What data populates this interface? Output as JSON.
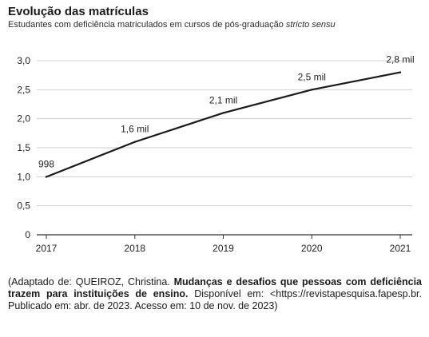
{
  "title": "Evolução das matrículas",
  "subtitle_main": "Estudantes com deficiência matriculados em cursos de pós-graduação",
  "subtitle_italic": "stricto sensu",
  "chart_data": {
    "type": "line",
    "x": [
      "2017",
      "2018",
      "2019",
      "2020",
      "2021"
    ],
    "series": [
      {
        "values": [
          998,
          1600,
          2100,
          2500,
          2800
        ]
      }
    ],
    "data_labels": [
      "998",
      "1,6 mil",
      "2,1 mil",
      "2,5 mil",
      "2,8 mil"
    ],
    "y_ticks": [
      0,
      0.5,
      1.0,
      1.5,
      2.0,
      2.5,
      3.0
    ],
    "y_tick_labels": [
      "0",
      "0,5",
      "1,0",
      "1,5",
      "2,0",
      "2,5",
      "3,0"
    ],
    "ylim": [
      0,
      3.0
    ],
    "y_unit": "thousands",
    "grid": "horizontal",
    "line_color": "#1a1a1a",
    "grid_color": "#cfcfcf"
  },
  "source": {
    "part1": "(Adaptado de: QUEIROZ, Christina. ",
    "bold": "Mudanças e desafios que pessoas com deficiência trazem para instituições de ensino.",
    "part2": " Disponível em: <https://revistapesquisa.fapesp.br. Publicado em: abr. de 2023. Acesso em: 10 de nov. de 2023)"
  }
}
